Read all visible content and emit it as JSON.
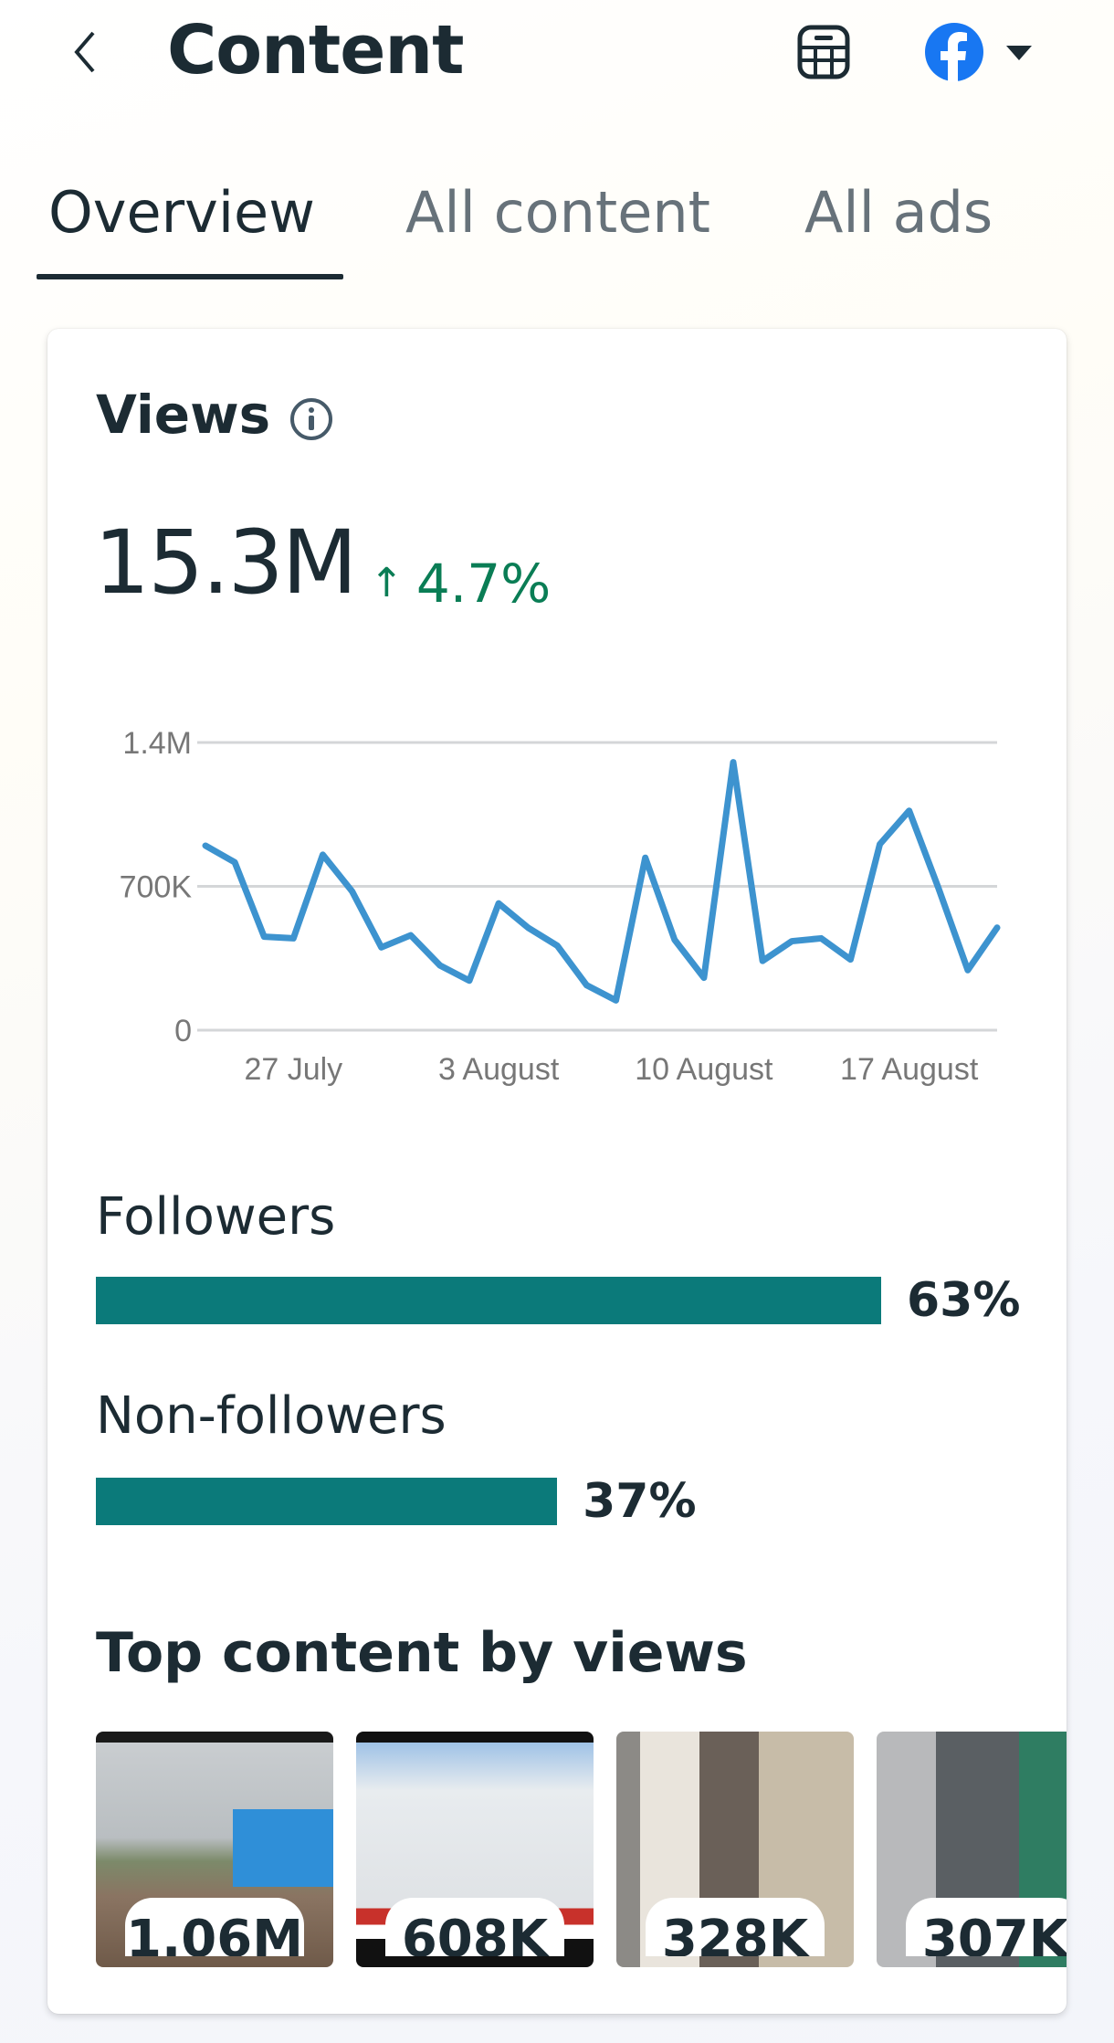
{
  "header": {
    "title": "Content",
    "back_icon": "chevron-left-icon",
    "calendar_icon": "calendar-icon",
    "account_icon": "facebook-icon",
    "dropdown_icon": "caret-down-icon"
  },
  "tabs": [
    {
      "label": "Overview",
      "active": true
    },
    {
      "label": "All content",
      "active": false
    },
    {
      "label": "All ads",
      "active": false
    }
  ],
  "views": {
    "title": "Views",
    "total": "15.3M",
    "change_arrow": "↑",
    "change": "4.7%",
    "change_color": "#0a7d55"
  },
  "chart_data": {
    "type": "line",
    "title": "Views",
    "x": [
      "24 July",
      "25 July",
      "26 July",
      "27 July",
      "28 July",
      "29 July",
      "30 July",
      "31 July",
      "1 August",
      "2 August",
      "3 August",
      "4 August",
      "5 August",
      "6 August",
      "7 August",
      "8 August",
      "9 August",
      "10 August",
      "11 August",
      "12 August",
      "13 August",
      "14 August",
      "15 August",
      "16 August",
      "17 August",
      "18 August",
      "19 August",
      "20 August"
    ],
    "values": [
      898000,
      817000,
      455000,
      447000,
      854000,
      676000,
      403000,
      462000,
      315000,
      241000,
      617000,
      499000,
      411000,
      219000,
      145000,
      839000,
      440000,
      255000,
      1304000,
      337000,
      433000,
      447000,
      344000,
      905000,
      1068000,
      691000,
      292000,
      499000
    ],
    "xticks": [
      "27 July",
      "3 August",
      "10 August",
      "17 August"
    ],
    "xtick_index": [
      3,
      10,
      17,
      24
    ],
    "yticks": [
      "1.4M",
      "700K",
      "0"
    ],
    "ytick_values": [
      1400000,
      700000,
      0
    ],
    "ylim": [
      0,
      1400000
    ],
    "grid": true,
    "color": "#3d93cf"
  },
  "audience": [
    {
      "label": "Followers",
      "percent": 63,
      "display": "63%"
    },
    {
      "label": "Non-followers",
      "percent": 37,
      "display": "37%"
    }
  ],
  "bar_color": "#0b7a7a",
  "top_content": {
    "title": "Top content by views",
    "items": [
      {
        "views": "1.06M"
      },
      {
        "views": "608K"
      },
      {
        "views": "328K"
      },
      {
        "views": "307K"
      }
    ]
  }
}
